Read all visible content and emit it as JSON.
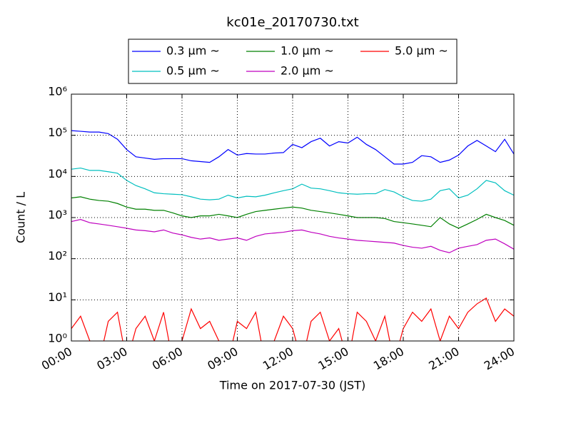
{
  "chart_data": {
    "type": "line",
    "title": "kc01e_20170730.txt",
    "xlabel": "Time on 2017-07-30 (JST)",
    "ylabel": "Count / L",
    "yscale": "log",
    "grid": true,
    "legend": "top",
    "xlim": [
      0,
      24
    ],
    "xticks": [
      {
        "value": 0,
        "label": "00:00"
      },
      {
        "value": 3,
        "label": "03:00"
      },
      {
        "value": 6,
        "label": "06:00"
      },
      {
        "value": 9,
        "label": "09:00"
      },
      {
        "value": 12,
        "label": "12:00"
      },
      {
        "value": 15,
        "label": "15:00"
      },
      {
        "value": 18,
        "label": "18:00"
      },
      {
        "value": 21,
        "label": "21:00"
      },
      {
        "value": 24,
        "label": "24:00"
      }
    ],
    "ylim": [
      1,
      1000000
    ],
    "yticks": [
      {
        "value": 1,
        "label": "10⁰"
      },
      {
        "value": 10,
        "label": "10¹"
      },
      {
        "value": 100,
        "label": "10²"
      },
      {
        "value": 1000,
        "label": "10³"
      },
      {
        "value": 10000,
        "label": "10⁴"
      },
      {
        "value": 100000,
        "label": "10⁵"
      },
      {
        "value": 1000000,
        "label": "10⁶"
      }
    ],
    "x": [
      0,
      0.5,
      1,
      1.5,
      2,
      2.5,
      3,
      3.5,
      4,
      4.5,
      5,
      5.5,
      6,
      6.5,
      7,
      7.5,
      8,
      8.5,
      9,
      9.5,
      10,
      10.5,
      11,
      11.5,
      12,
      12.5,
      13,
      13.5,
      14,
      14.5,
      15,
      15.5,
      16,
      16.5,
      17,
      17.5,
      18,
      18.5,
      19,
      19.5,
      20,
      20.5,
      21,
      21.5,
      22,
      22.5,
      23,
      23.5,
      24
    ],
    "series": [
      {
        "name": "0.3 μm ~",
        "color": "#0000ff",
        "values": [
          130000,
          125000,
          120000,
          120000,
          110000,
          80000,
          45000,
          30000,
          28000,
          26000,
          27000,
          27000,
          27000,
          24000,
          23000,
          22000,
          30000,
          45000,
          33000,
          36000,
          35000,
          35000,
          37000,
          38000,
          60000,
          50000,
          70000,
          85000,
          55000,
          70000,
          65000,
          90000,
          60000,
          45000,
          30000,
          20000,
          20000,
          22000,
          32000,
          30000,
          22000,
          25000,
          33000,
          55000,
          75000,
          55000,
          40000,
          80000,
          35000
        ]
      },
      {
        "name": "0.5 μm ~",
        "color": "#00bfbf",
        "values": [
          15000,
          16000,
          14000,
          14000,
          13000,
          12000,
          8000,
          6000,
          5000,
          4000,
          3800,
          3700,
          3600,
          3200,
          2800,
          2700,
          2800,
          3500,
          3000,
          3300,
          3200,
          3500,
          4000,
          4500,
          5000,
          6500,
          5200,
          5000,
          4500,
          4000,
          3800,
          3700,
          3800,
          3800,
          4800,
          4200,
          3200,
          2600,
          2500,
          2800,
          4500,
          5000,
          3000,
          3500,
          5000,
          8000,
          7000,
          4500,
          3500
        ]
      },
      {
        "name": "1.0 μm ~",
        "color": "#008000",
        "values": [
          3000,
          3200,
          2800,
          2600,
          2500,
          2200,
          1800,
          1600,
          1600,
          1500,
          1500,
          1300,
          1100,
          1000,
          1100,
          1100,
          1200,
          1100,
          1000,
          1200,
          1400,
          1500,
          1600,
          1700,
          1800,
          1700,
          1500,
          1400,
          1300,
          1200,
          1100,
          1000,
          1000,
          1000,
          950,
          800,
          750,
          700,
          650,
          600,
          1000,
          700,
          550,
          700,
          900,
          1200,
          1000,
          850,
          650
        ]
      },
      {
        "name": "2.0 μm ~",
        "color": "#bf00bf",
        "values": [
          800,
          900,
          750,
          700,
          650,
          600,
          550,
          500,
          480,
          450,
          500,
          420,
          380,
          330,
          300,
          320,
          280,
          300,
          320,
          280,
          350,
          400,
          420,
          440,
          480,
          500,
          440,
          400,
          350,
          320,
          300,
          280,
          270,
          260,
          250,
          240,
          210,
          190,
          180,
          200,
          160,
          140,
          180,
          200,
          220,
          280,
          300,
          230,
          170
        ]
      },
      {
        "name": "5.0 μm ~",
        "color": "#ff0000",
        "values": [
          2,
          4,
          1,
          0,
          3,
          5,
          0,
          2,
          4,
          1,
          5,
          0,
          1,
          6,
          2,
          3,
          1,
          0,
          3,
          2,
          5,
          0,
          1,
          4,
          2,
          0,
          3,
          5,
          1,
          2,
          0,
          5,
          3,
          1,
          4,
          0,
          2,
          5,
          3,
          6,
          1,
          4,
          2,
          5,
          8,
          11,
          3,
          6,
          4
        ]
      }
    ]
  }
}
